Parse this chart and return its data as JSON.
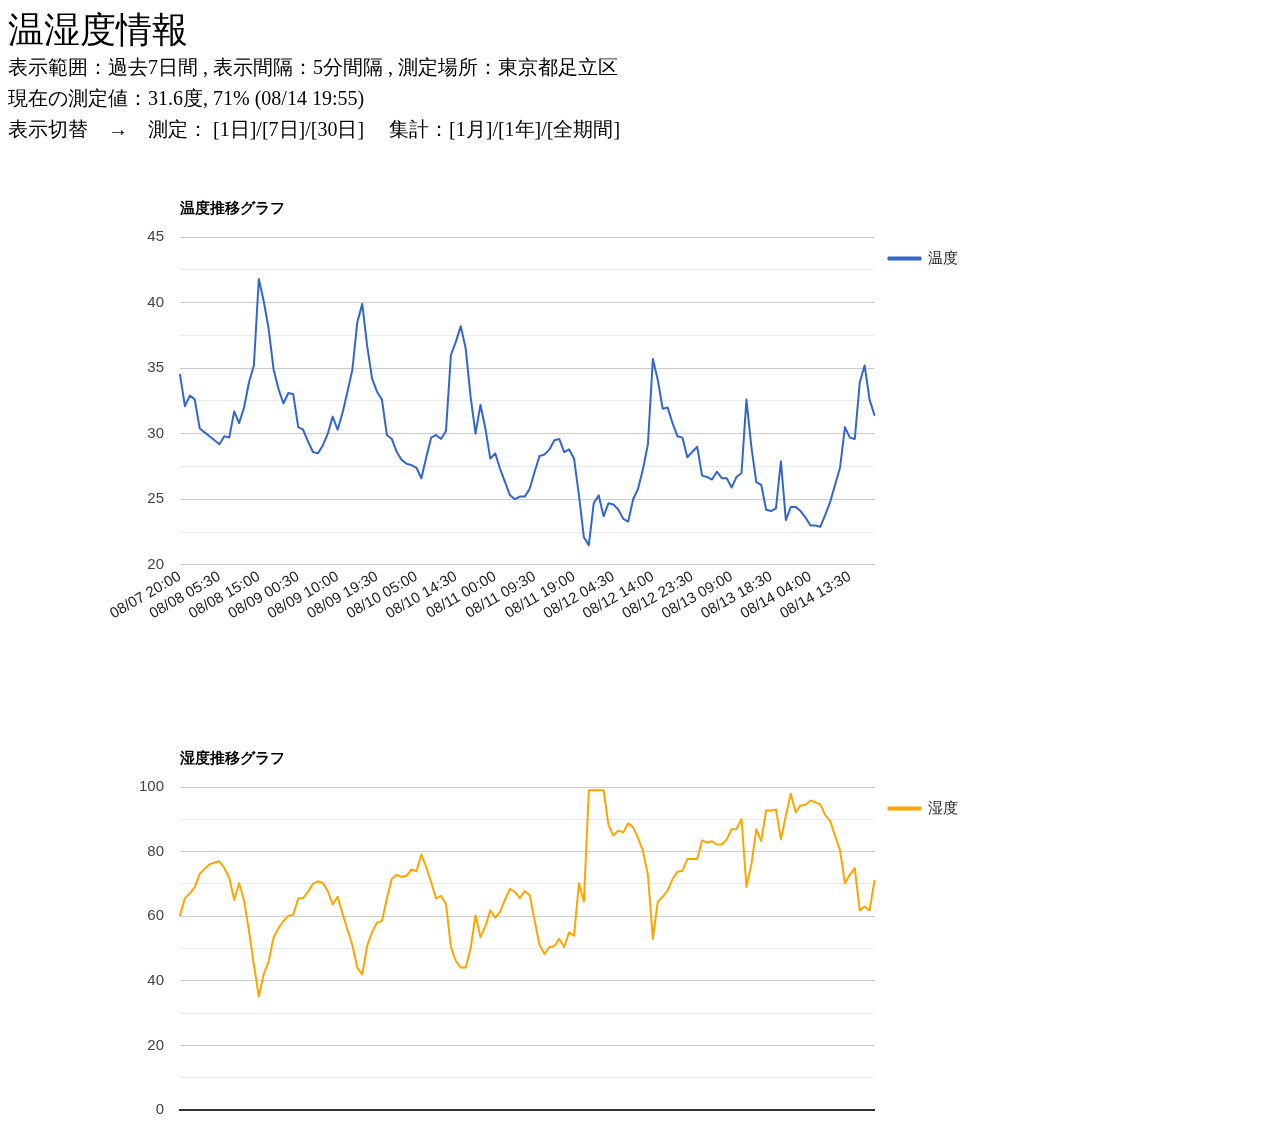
{
  "chart_data": [
    {
      "type": "other",
      "title": "温湿度情報",
      "annotations": [
        "表示範囲：過去7日間 , 表示間隔：5分間隔 , 測定場所：東京都足立区",
        "現在の測定値：31.6度, 71% (08/14 19:55)",
        "表示切替　→　測定： [1日]/[7日]/[30日]　 集計：[1月]/[1年]/[全期間]"
      ]
    },
    {
      "type": "line",
      "title": "温度推移グラフ",
      "categories": [
        "08/07 20:00",
        null,
        null,
        null,
        null,
        null,
        null,
        null,
        "08/08 05:30",
        null,
        null,
        null,
        null,
        null,
        null,
        null,
        "08/08 15:00",
        null,
        null,
        null,
        null,
        null,
        null,
        null,
        "08/09 00:30",
        null,
        null,
        null,
        null,
        null,
        null,
        null,
        "08/09 10:00",
        null,
        null,
        null,
        null,
        null,
        null,
        null,
        "08/09 19:30",
        null,
        null,
        null,
        null,
        null,
        null,
        null,
        "08/10 05:00",
        null,
        null,
        null,
        null,
        null,
        null,
        null,
        "08/10 14:30",
        null,
        null,
        null,
        null,
        null,
        null,
        null,
        "08/11 00:00",
        null,
        null,
        null,
        null,
        null,
        null,
        null,
        "08/11 09:30",
        null,
        null,
        null,
        null,
        null,
        null,
        null,
        "08/11 19:00",
        null,
        null,
        null,
        null,
        null,
        null,
        null,
        "08/12 04:30",
        null,
        null,
        null,
        null,
        null,
        null,
        null,
        "08/12 14:00",
        null,
        null,
        null,
        null,
        null,
        null,
        null,
        "08/12 23:30",
        null,
        null,
        null,
        null,
        null,
        null,
        null,
        "08/13 09:00",
        null,
        null,
        null,
        null,
        null,
        null,
        null,
        "08/13 18:30",
        null,
        null,
        null,
        null,
        null,
        null,
        null,
        "08/14 04:00",
        null,
        null,
        null,
        null,
        null,
        null,
        null,
        "08/14 13:30",
        null,
        null,
        null,
        null,
        null
      ],
      "series": [
        {
          "name": "温度",
          "color": "#3366cc",
          "values": [
            34.5,
            32.1,
            32.9,
            32.6,
            30.4,
            30.1,
            29.8,
            29.5,
            29.2,
            29.8,
            29.7,
            31.7,
            30.8,
            32.0,
            33.9,
            35.2,
            41.8,
            40.1,
            38.0,
            34.9,
            33.4,
            32.3,
            33.1,
            33.0,
            30.5,
            30.3,
            29.4,
            28.6,
            28.5,
            29.1,
            30.0,
            31.3,
            30.3,
            31.6,
            33.2,
            34.9,
            38.5,
            39.9,
            36.7,
            34.2,
            33.2,
            32.6,
            29.9,
            29.6,
            28.6,
            28.0,
            27.7,
            27.6,
            27.4,
            26.6,
            28.2,
            29.7,
            29.9,
            29.6,
            30.2,
            36.0,
            37.0,
            38.2,
            36.5,
            32.8,
            30.0,
            32.2,
            30.4,
            28.1,
            28.5,
            27.3,
            26.3,
            25.3,
            25.0,
            25.2,
            25.2,
            25.8,
            27.1,
            28.3,
            28.4,
            28.8,
            29.5,
            29.6,
            28.6,
            28.8,
            28.1,
            25.3,
            22.1,
            21.5,
            24.7,
            25.3,
            23.7,
            24.7,
            24.6,
            24.2,
            23.5,
            23.3,
            25.0,
            25.8,
            27.3,
            29.2,
            35.7,
            34.1,
            31.9,
            32.0,
            30.8,
            29.8,
            29.7,
            28.2,
            28.6,
            29.0,
            26.8,
            26.7,
            26.5,
            27.1,
            26.6,
            26.6,
            25.9,
            26.7,
            27.0,
            32.6,
            29.0,
            26.3,
            26.1,
            24.2,
            24.1,
            24.3,
            27.9,
            23.4,
            24.4,
            24.4,
            24.1,
            23.6,
            23.0,
            23.0,
            22.9,
            23.8,
            24.8,
            26.1,
            27.4,
            30.5,
            29.7,
            29.6,
            33.9,
            35.2,
            32.6,
            31.4
          ]
        }
      ],
      "ylim": [
        20,
        45
      ],
      "yticks": [
        20,
        {
          "value": 22.5,
          "label": null
        },
        25,
        {
          "value": 27.5,
          "label": null
        },
        30,
        {
          "value": 32.5,
          "label": null
        },
        35,
        {
          "value": 37.5,
          "label": null
        },
        40,
        {
          "value": 42.5,
          "label": null
        },
        45
      ],
      "grid": "y",
      "legend": "right"
    },
    {
      "type": "line",
      "title": "湿度推移グラフ",
      "categories": [
        null,
        null,
        null,
        null,
        null,
        null,
        null,
        null,
        null,
        null,
        null,
        null,
        null,
        null,
        null,
        null,
        null,
        null,
        null,
        null,
        null,
        null,
        null,
        null,
        null,
        null,
        null,
        null,
        null,
        null,
        null,
        null,
        null,
        null,
        null,
        null,
        null,
        null,
        null,
        null,
        null,
        null,
        null,
        null,
        null,
        null,
        null,
        null,
        null,
        null,
        null,
        null,
        null,
        null,
        null,
        null,
        null,
        null,
        null,
        null,
        null,
        null,
        null,
        null,
        null,
        null,
        null,
        null,
        null,
        null,
        null,
        null,
        null,
        null,
        null,
        null,
        null,
        null,
        null,
        null,
        null,
        null,
        null,
        null,
        null,
        null,
        null,
        null,
        null,
        null,
        null,
        null,
        null,
        null,
        null,
        null,
        null,
        null,
        null,
        null,
        null,
        null,
        null,
        null,
        null,
        null,
        null,
        null,
        null,
        null,
        null,
        null,
        null,
        null,
        null,
        null,
        null,
        null,
        null,
        null,
        null,
        null,
        null,
        null,
        null,
        null,
        null,
        null,
        null,
        null,
        null,
        null,
        null,
        null,
        null,
        null,
        null,
        null,
        null,
        null,
        null,
        null
      ],
      "series": [
        {
          "name": "湿度",
          "color": "#ffa500",
          "values": [
            60.3,
            65.6,
            67.0,
            69.0,
            73.1,
            74.7,
            76.1,
            76.6,
            77.0,
            74.9,
            71.9,
            65.0,
            70.2,
            65.0,
            55.5,
            45.0,
            35.2,
            42.0,
            46.0,
            53.5,
            56.3,
            58.5,
            60.1,
            60.5,
            65.5,
            65.6,
            67.6,
            70.0,
            70.8,
            70.3,
            67.8,
            63.6,
            66.0,
            60.8,
            55.9,
            51.0,
            44.0,
            42.0,
            50.8,
            55.1,
            58.0,
            58.5,
            65.5,
            71.6,
            72.8,
            72.2,
            72.5,
            74.5,
            73.9,
            79.1,
            75.2,
            70.5,
            65.5,
            66.3,
            63.8,
            50.4,
            46.2,
            44.1,
            44.1,
            50.0,
            60.3,
            53.5,
            56.9,
            61.8,
            59.5,
            61.4,
            65.2,
            68.5,
            67.5,
            65.6,
            67.8,
            66.5,
            58.7,
            51.1,
            48.3,
            50.4,
            50.8,
            53.0,
            50.4,
            55.0,
            54.0,
            70.2,
            64.5,
            99.0,
            99.0,
            99.0,
            99.0,
            88.2,
            85.0,
            86.5,
            86.0,
            88.8,
            87.5,
            84.2,
            80.2,
            72.8,
            53.0,
            64.5,
            66.0,
            68.0,
            71.5,
            73.8,
            74.1,
            77.7,
            77.7,
            77.7,
            83.5,
            82.8,
            83.2,
            82.2,
            82.2,
            83.8,
            86.9,
            87.0,
            90.1,
            69.0,
            76.0,
            86.9,
            83.3,
            92.7,
            92.7,
            93.0,
            83.8,
            91.1,
            97.9,
            92.2,
            94.3,
            94.5,
            95.8,
            95.3,
            94.6,
            91.3,
            89.5,
            84.9,
            80.4,
            70.2,
            72.8,
            74.9,
            61.8,
            63.0,
            61.8,
            71.0
          ]
        }
      ],
      "ylim": [
        0,
        100
      ],
      "yticks": [
        0,
        {
          "value": 10,
          "label": null
        },
        20,
        {
          "value": 30,
          "label": null
        },
        40,
        {
          "value": 50,
          "label": null
        },
        60,
        {
          "value": 70,
          "label": null
        },
        80,
        {
          "value": 90,
          "label": null
        },
        100
      ],
      "grid": "y",
      "legend": "right",
      "tick_labels": "y"
    }
  ]
}
